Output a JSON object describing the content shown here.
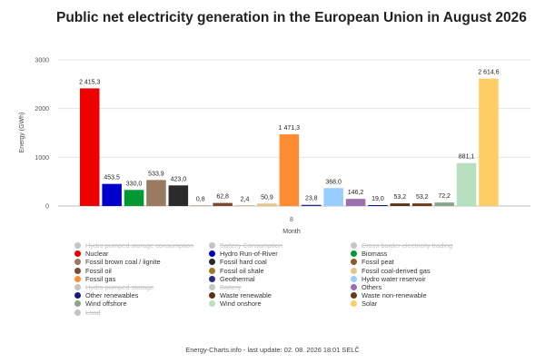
{
  "page": {
    "footer": "Energy-Charts.info - last update: 02. 08. 2026 18:01 SELČ"
  },
  "chart_data": {
    "type": "bar",
    "title": "Public net electricity generation in the European Union in August 2026",
    "xlabel": "Month",
    "ylabel": "Energy (GWh)",
    "categories": [
      "8"
    ],
    "ylim": [
      0,
      3000
    ],
    "yticks": [
      0,
      1000,
      2000,
      3000
    ],
    "ytick_labels": [
      "0",
      "1000",
      "2000",
      "3000"
    ],
    "grid": true,
    "legend_position": "bottom",
    "series": [
      {
        "name": "Hydro pumped storage consumption",
        "color": "#c4c4c4",
        "visible": false
      },
      {
        "name": "Battery Consumption",
        "color": "#c4c4c4",
        "visible": false
      },
      {
        "name": "Cross border electricity trading",
        "color": "#c4c4c4",
        "visible": false
      },
      {
        "name": "Nuclear",
        "color": "#ee0000",
        "visible": true,
        "value": 2415.3,
        "value_label": "2 415,3"
      },
      {
        "name": "Hydro Run-of-River",
        "color": "#0000cc",
        "visible": true,
        "value": 453.5,
        "value_label": "453,5"
      },
      {
        "name": "Biomass",
        "color": "#009933",
        "visible": true,
        "value": 330.0,
        "value_label": "330,0"
      },
      {
        "name": "Fossil brown coal / lignite",
        "color": "#9a7a60",
        "visible": true,
        "value": 533.9,
        "value_label": "533,9"
      },
      {
        "name": "Fossil hard coal",
        "color": "#2b2b2b",
        "visible": true,
        "value": 423.0,
        "value_label": "423,0"
      },
      {
        "name": "Fossil peat",
        "color": "#8b5a2b",
        "visible": true,
        "value": 0.8,
        "value_label": "0,8"
      },
      {
        "name": "Fossil oil",
        "color": "#7a4a30",
        "visible": true,
        "value": 62.8,
        "value_label": "62,8"
      },
      {
        "name": "Fossil oil shale",
        "color": "#a0782d",
        "visible": true,
        "value": 2.4,
        "value_label": "2,4"
      },
      {
        "name": "Fossil coal-derived gas",
        "color": "#e0c78a",
        "visible": true,
        "value": 50.9,
        "value_label": "50,9"
      },
      {
        "name": "Fossil gas",
        "color": "#ff8c33",
        "visible": true,
        "value": 1471.3,
        "value_label": "1 471,3"
      },
      {
        "name": "Geothermal",
        "color": "#2b2b80",
        "visible": true,
        "value": 23.8,
        "value_label": "23,8"
      },
      {
        "name": "Hydro water reservoir",
        "color": "#99ccff",
        "visible": true,
        "value": 368.0,
        "value_label": "368,0"
      },
      {
        "name": "Hydro pumped storage",
        "color": "#c4c4c4",
        "visible": false
      },
      {
        "name": "Battery",
        "color": "#c4c4c4",
        "visible": false
      },
      {
        "name": "Others",
        "color": "#9b6fb0",
        "visible": true,
        "value": 146.2,
        "value_label": "146,2"
      },
      {
        "name": "Other renewables",
        "color": "#1a1a80",
        "visible": true,
        "value": 19.0,
        "value_label": "19,0"
      },
      {
        "name": "Waste renewable",
        "color": "#5a3316",
        "visible": true,
        "value": 53.2,
        "value_label": "53,2"
      },
      {
        "name": "Waste non-renewable",
        "color": "#6b3a1a",
        "visible": true,
        "value": 53.2,
        "value_label": "53,2"
      },
      {
        "name": "Wind offshore",
        "color": "#8aa68a",
        "visible": true,
        "value": 72.2,
        "value_label": "72,2"
      },
      {
        "name": "Wind onshore",
        "color": "#b8e0c0",
        "visible": true,
        "value": 881.1,
        "value_label": "881,1"
      },
      {
        "name": "Solar",
        "color": "#ffcc66",
        "visible": true,
        "value": 2614.6,
        "value_label": "2 614,6"
      },
      {
        "name": "Load",
        "color": "#c4c4c4",
        "visible": false
      }
    ]
  }
}
